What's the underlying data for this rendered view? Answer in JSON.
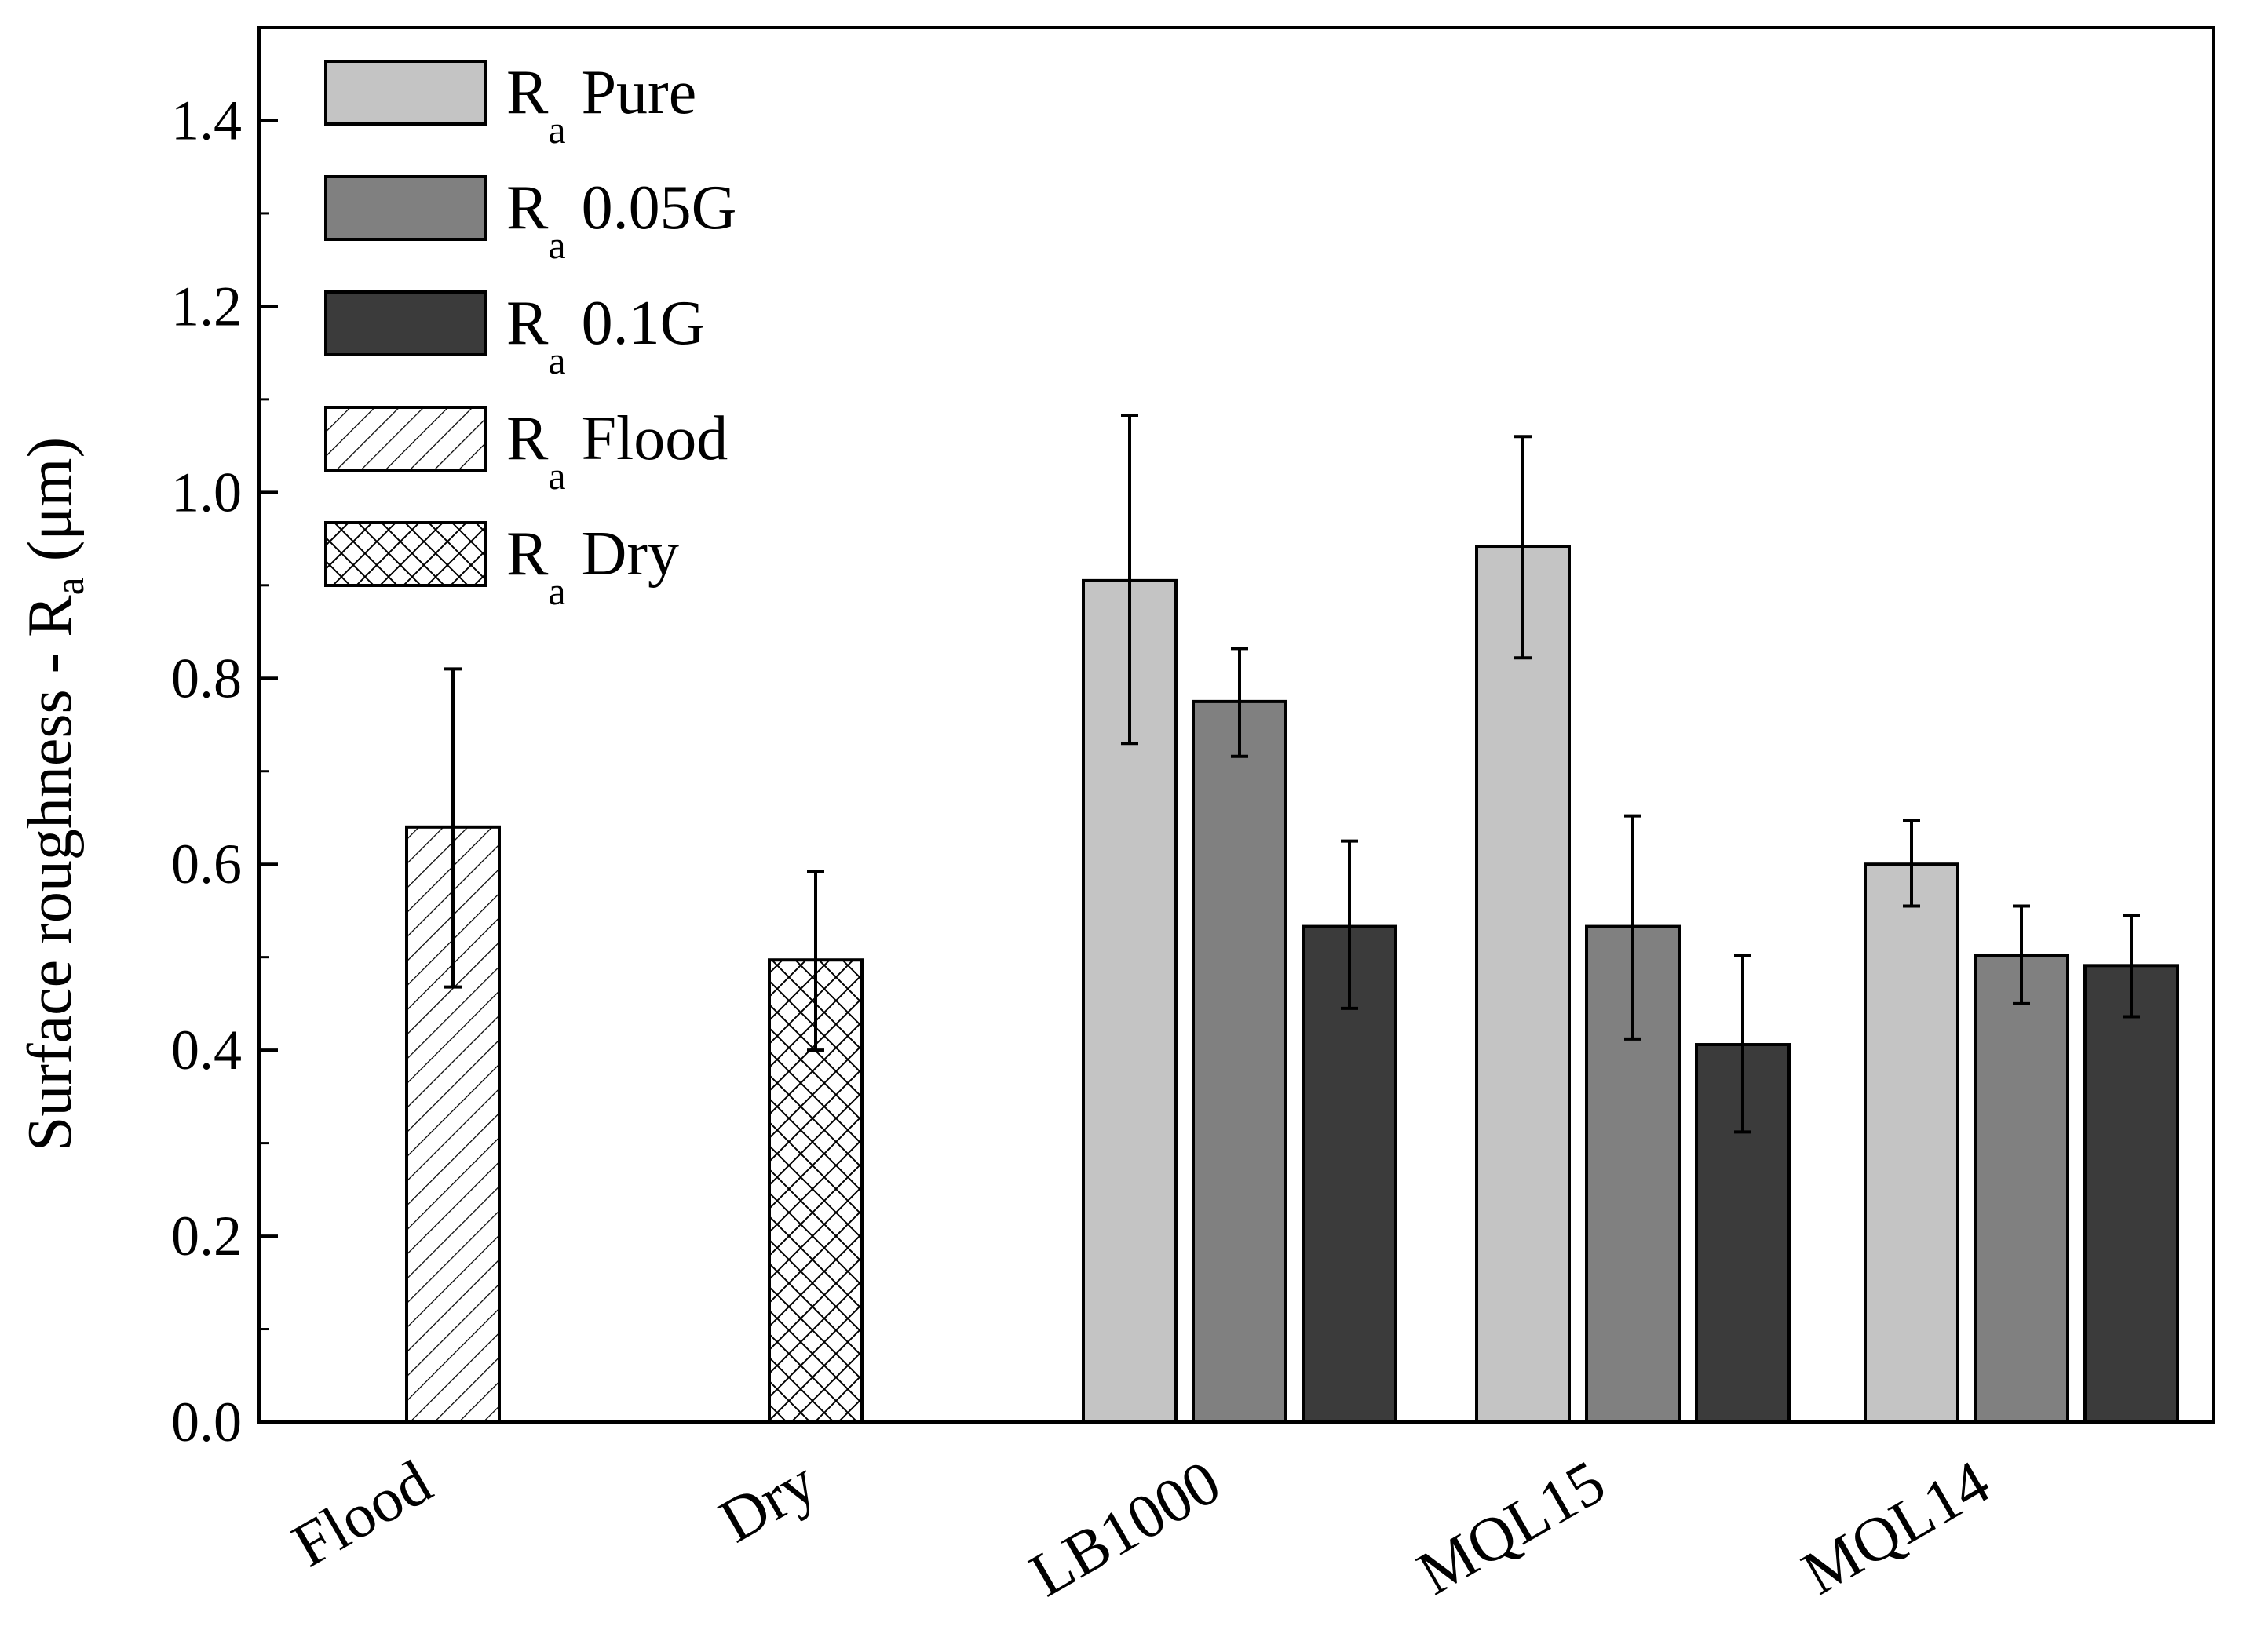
{
  "chart_data": {
    "type": "bar",
    "title": "",
    "xlabel": "",
    "ylabel": {
      "main": "Surface roughness - R",
      "sub": "a",
      "unit": " (μm)"
    },
    "ylim": [
      0,
      1.5
    ],
    "yticks": [
      "0.0",
      "0.2",
      "0.4",
      "0.6",
      "0.8",
      "1.0",
      "1.2",
      "1.4"
    ],
    "categories": [
      "Flood",
      "Dry",
      "LB1000",
      "MQL15",
      "MQL14"
    ],
    "series": [
      {
        "key": "pure",
        "name": "Pure",
        "fill": "#c4c4c4",
        "values": [
          null,
          null,
          0.905,
          0.942,
          0.6
        ],
        "err_low": [
          null,
          null,
          0.73,
          0.822,
          0.555
        ],
        "err_high": [
          null,
          null,
          1.083,
          1.06,
          0.647
        ]
      },
      {
        "key": "g005",
        "name": "0.05G",
        "fill": "#808080",
        "values": [
          null,
          null,
          0.775,
          0.533,
          0.502
        ],
        "err_low": [
          null,
          null,
          0.716,
          0.412,
          0.45
        ],
        "err_high": [
          null,
          null,
          0.832,
          0.652,
          0.555
        ]
      },
      {
        "key": "g01",
        "name": "0.1G",
        "fill": "#3b3b3b",
        "values": [
          null,
          null,
          0.533,
          0.406,
          0.491
        ],
        "err_low": [
          null,
          null,
          0.445,
          0.312,
          0.436
        ],
        "err_high": [
          null,
          null,
          0.625,
          0.502,
          0.545
        ]
      },
      {
        "key": "flood",
        "name": "Flood",
        "fill": "hatch",
        "values": [
          0.64,
          null,
          null,
          null,
          null
        ],
        "err_low": [
          0.468,
          null,
          null,
          null,
          null
        ],
        "err_high": [
          0.81,
          null,
          null,
          null,
          null
        ]
      },
      {
        "key": "dry",
        "name": "Dry",
        "fill": "cross",
        "values": [
          null,
          0.497,
          null,
          null,
          null
        ],
        "err_low": [
          null,
          0.4,
          null,
          null,
          null
        ],
        "err_high": [
          null,
          0.592,
          null,
          null,
          null
        ]
      }
    ],
    "legend": {
      "placement": "top-left",
      "prefix": "R",
      "prefix_sub": "a"
    }
  }
}
